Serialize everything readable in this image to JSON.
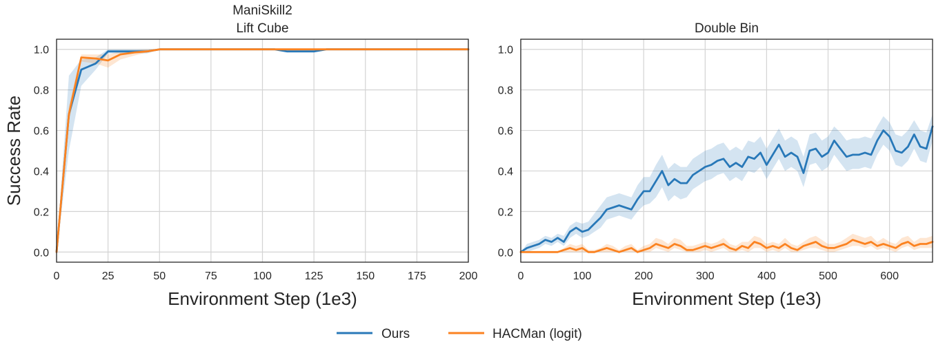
{
  "colors": {
    "ours": "#2878b8",
    "hacman": "#fb8220",
    "grid": "#d3d3d3",
    "axis": "#262626"
  },
  "legend": {
    "entries": [
      "Ours",
      "HACMan (logit)"
    ]
  },
  "chart_data": [
    {
      "type": "line",
      "title": [
        "ManiSkill2",
        "Lift Cube"
      ],
      "xlabel": "Environment Step (1e3)",
      "ylabel": "Success Rate",
      "xlim": [
        0,
        200
      ],
      "ylim": [
        -0.05,
        1.05
      ],
      "xticks": [
        0,
        25,
        50,
        75,
        100,
        125,
        150,
        175,
        200
      ],
      "xtick_labels": [
        "0",
        "25",
        "50",
        "75",
        "100",
        "125",
        "150",
        "175",
        "200"
      ],
      "yticks": [
        0.0,
        0.2,
        0.4,
        0.6,
        0.8,
        1.0
      ],
      "ytick_labels": [
        "0.0",
        "0.2",
        "0.4",
        "0.6",
        "0.8",
        "1.0"
      ],
      "grid": true,
      "series": [
        {
          "name": "Ours",
          "x": [
            0,
            6,
            12,
            19,
            25,
            31,
            38,
            44,
            50,
            56,
            62,
            69,
            75,
            81,
            87,
            94,
            100,
            106,
            112,
            119,
            125,
            131,
            137,
            144,
            150,
            156,
            162,
            169,
            175,
            181,
            187,
            194,
            200
          ],
          "y": [
            0.0,
            0.68,
            0.9,
            0.93,
            0.99,
            0.99,
            0.99,
            0.99,
            1.0,
            1.0,
            1.0,
            1.0,
            1.0,
            1.0,
            1.0,
            1.0,
            1.0,
            1.0,
            0.99,
            0.99,
            0.99,
            1.0,
            1.0,
            1.0,
            1.0,
            1.0,
            1.0,
            1.0,
            1.0,
            1.0,
            1.0,
            1.0,
            1.0
          ],
          "band_low": [
            0.0,
            0.5,
            0.82,
            0.9,
            0.98,
            0.98,
            0.98,
            0.98,
            1.0,
            1.0,
            1.0,
            1.0,
            1.0,
            1.0,
            1.0,
            1.0,
            1.0,
            1.0,
            0.985,
            0.985,
            0.985,
            1.0,
            1.0,
            1.0,
            1.0,
            1.0,
            1.0,
            1.0,
            1.0,
            1.0,
            1.0,
            1.0,
            1.0
          ],
          "band_high": [
            0.0,
            0.87,
            0.95,
            0.96,
            1.0,
            1.0,
            1.0,
            1.0,
            1.0,
            1.0,
            1.0,
            1.0,
            1.0,
            1.0,
            1.0,
            1.0,
            1.0,
            1.0,
            1.0,
            1.0,
            1.0,
            1.0,
            1.0,
            1.0,
            1.0,
            1.0,
            1.0,
            1.0,
            1.0,
            1.0,
            1.0,
            1.0,
            1.0
          ]
        },
        {
          "name": "HACMan (logit)",
          "x": [
            0,
            6,
            12,
            19,
            25,
            31,
            38,
            44,
            50,
            56,
            62,
            69,
            75,
            81,
            87,
            94,
            100,
            106,
            112,
            119,
            125,
            131,
            137,
            144,
            150,
            156,
            162,
            169,
            175,
            181,
            187,
            194,
            200
          ],
          "y": [
            0.0,
            0.68,
            0.96,
            0.955,
            0.945,
            0.975,
            0.985,
            0.99,
            1.0,
            1.0,
            1.0,
            1.0,
            1.0,
            1.0,
            1.0,
            1.0,
            1.0,
            1.0,
            1.0,
            1.0,
            1.0,
            1.0,
            1.0,
            1.0,
            1.0,
            1.0,
            1.0,
            1.0,
            1.0,
            1.0,
            1.0,
            1.0,
            1.0
          ],
          "band_low": [
            0.0,
            0.64,
            0.94,
            0.93,
            0.91,
            0.95,
            0.97,
            0.985,
            1.0,
            1.0,
            1.0,
            1.0,
            1.0,
            1.0,
            1.0,
            1.0,
            1.0,
            1.0,
            1.0,
            1.0,
            1.0,
            1.0,
            1.0,
            1.0,
            1.0,
            1.0,
            1.0,
            1.0,
            1.0,
            1.0,
            1.0,
            1.0,
            1.0
          ],
          "band_high": [
            0.0,
            0.72,
            0.975,
            0.975,
            0.975,
            0.99,
            0.995,
            1.0,
            1.0,
            1.0,
            1.0,
            1.0,
            1.0,
            1.0,
            1.0,
            1.0,
            1.0,
            1.0,
            1.0,
            1.0,
            1.0,
            1.0,
            1.0,
            1.0,
            1.0,
            1.0,
            1.0,
            1.0,
            1.0,
            1.0,
            1.0,
            1.0,
            1.0
          ]
        }
      ]
    },
    {
      "type": "line",
      "title": [
        "Double Bin"
      ],
      "xlabel": "Environment Step (1e3)",
      "ylabel": "",
      "xlim": [
        0,
        670
      ],
      "ylim": [
        -0.05,
        1.05
      ],
      "xticks": [
        0,
        100,
        200,
        300,
        400,
        500,
        600
      ],
      "xtick_labels": [
        "0",
        "100",
        "200",
        "300",
        "400",
        "500",
        "600"
      ],
      "yticks": [
        0.0,
        0.2,
        0.4,
        0.6,
        0.8,
        1.0
      ],
      "ytick_labels": [
        "0.0",
        "0.2",
        "0.4",
        "0.6",
        "0.8",
        "1.0"
      ],
      "grid": true,
      "series": [
        {
          "name": "Ours",
          "x": [
            0,
            10,
            20,
            30,
            40,
            50,
            60,
            70,
            80,
            90,
            100,
            110,
            120,
            130,
            140,
            150,
            160,
            170,
            180,
            190,
            200,
            210,
            220,
            230,
            240,
            250,
            260,
            270,
            280,
            290,
            300,
            310,
            320,
            330,
            340,
            350,
            360,
            370,
            380,
            390,
            400,
            410,
            420,
            430,
            440,
            450,
            460,
            470,
            480,
            490,
            500,
            510,
            520,
            530,
            540,
            550,
            560,
            570,
            580,
            590,
            600,
            610,
            620,
            630,
            640,
            650,
            660,
            670
          ],
          "y": [
            0.0,
            0.02,
            0.03,
            0.04,
            0.06,
            0.05,
            0.07,
            0.05,
            0.1,
            0.12,
            0.1,
            0.11,
            0.14,
            0.17,
            0.21,
            0.22,
            0.23,
            0.22,
            0.21,
            0.26,
            0.3,
            0.3,
            0.35,
            0.4,
            0.33,
            0.36,
            0.34,
            0.34,
            0.38,
            0.4,
            0.42,
            0.43,
            0.45,
            0.46,
            0.42,
            0.44,
            0.42,
            0.47,
            0.46,
            0.49,
            0.43,
            0.48,
            0.53,
            0.47,
            0.49,
            0.47,
            0.39,
            0.5,
            0.51,
            0.47,
            0.49,
            0.55,
            0.51,
            0.47,
            0.48,
            0.48,
            0.49,
            0.48,
            0.55,
            0.6,
            0.57,
            0.5,
            0.49,
            0.52,
            0.58,
            0.52,
            0.51,
            0.62
          ],
          "band_low": [
            0.0,
            0.0,
            0.01,
            0.02,
            0.04,
            0.03,
            0.05,
            0.03,
            0.07,
            0.09,
            0.07,
            0.08,
            0.1,
            0.12,
            0.16,
            0.17,
            0.18,
            0.17,
            0.16,
            0.2,
            0.23,
            0.24,
            0.27,
            0.32,
            0.25,
            0.28,
            0.26,
            0.27,
            0.31,
            0.33,
            0.35,
            0.36,
            0.38,
            0.39,
            0.35,
            0.37,
            0.35,
            0.4,
            0.39,
            0.42,
            0.36,
            0.41,
            0.46,
            0.4,
            0.42,
            0.4,
            0.32,
            0.43,
            0.44,
            0.4,
            0.42,
            0.48,
            0.44,
            0.4,
            0.41,
            0.41,
            0.42,
            0.41,
            0.48,
            0.53,
            0.5,
            0.43,
            0.42,
            0.45,
            0.51,
            0.45,
            0.44,
            0.55
          ],
          "band_high": [
            0.0,
            0.04,
            0.05,
            0.06,
            0.08,
            0.07,
            0.09,
            0.08,
            0.13,
            0.15,
            0.14,
            0.15,
            0.19,
            0.23,
            0.27,
            0.28,
            0.29,
            0.28,
            0.27,
            0.33,
            0.37,
            0.37,
            0.43,
            0.48,
            0.41,
            0.44,
            0.42,
            0.42,
            0.46,
            0.48,
            0.5,
            0.51,
            0.53,
            0.54,
            0.5,
            0.52,
            0.5,
            0.55,
            0.54,
            0.57,
            0.51,
            0.56,
            0.61,
            0.55,
            0.57,
            0.55,
            0.47,
            0.58,
            0.59,
            0.55,
            0.57,
            0.62,
            0.59,
            0.55,
            0.56,
            0.56,
            0.57,
            0.56,
            0.62,
            0.67,
            0.64,
            0.58,
            0.57,
            0.6,
            0.65,
            0.6,
            0.59,
            0.68
          ]
        },
        {
          "name": "HACMan (logit)",
          "x": [
            0,
            10,
            20,
            30,
            40,
            50,
            60,
            70,
            80,
            90,
            100,
            110,
            120,
            130,
            140,
            150,
            160,
            170,
            180,
            190,
            200,
            210,
            220,
            230,
            240,
            250,
            260,
            270,
            280,
            290,
            300,
            310,
            320,
            330,
            340,
            350,
            360,
            370,
            380,
            390,
            400,
            410,
            420,
            430,
            440,
            450,
            460,
            470,
            480,
            490,
            500,
            510,
            520,
            530,
            540,
            550,
            560,
            570,
            580,
            590,
            600,
            610,
            620,
            630,
            640,
            650,
            660,
            670
          ],
          "y": [
            0.0,
            0.0,
            0.0,
            0.0,
            0.0,
            0.0,
            0.0,
            0.01,
            0.02,
            0.01,
            0.02,
            0.0,
            0.0,
            0.01,
            0.02,
            0.01,
            0.0,
            0.01,
            0.02,
            0.0,
            0.01,
            0.02,
            0.04,
            0.03,
            0.02,
            0.04,
            0.03,
            0.01,
            0.01,
            0.02,
            0.03,
            0.02,
            0.03,
            0.04,
            0.02,
            0.01,
            0.03,
            0.02,
            0.05,
            0.04,
            0.02,
            0.03,
            0.02,
            0.04,
            0.02,
            0.01,
            0.03,
            0.04,
            0.05,
            0.03,
            0.02,
            0.02,
            0.03,
            0.04,
            0.06,
            0.05,
            0.04,
            0.05,
            0.03,
            0.04,
            0.03,
            0.02,
            0.04,
            0.05,
            0.03,
            0.04,
            0.04,
            0.05
          ],
          "band_low": [
            0.0,
            0.0,
            0.0,
            0.0,
            0.0,
            0.0,
            0.0,
            0.0,
            0.0,
            0.0,
            0.0,
            0.0,
            0.0,
            0.0,
            0.0,
            0.0,
            0.0,
            0.0,
            0.0,
            0.0,
            0.0,
            0.0,
            0.02,
            0.01,
            0.0,
            0.02,
            0.01,
            0.0,
            0.0,
            0.0,
            0.01,
            0.0,
            0.01,
            0.02,
            0.0,
            0.0,
            0.01,
            0.0,
            0.02,
            0.02,
            0.0,
            0.01,
            0.0,
            0.02,
            0.0,
            0.0,
            0.01,
            0.02,
            0.02,
            0.01,
            0.0,
            0.0,
            0.01,
            0.02,
            0.03,
            0.03,
            0.02,
            0.03,
            0.01,
            0.02,
            0.01,
            0.0,
            0.02,
            0.03,
            0.01,
            0.02,
            0.02,
            0.02
          ],
          "band_high": [
            0.0,
            0.0,
            0.0,
            0.0,
            0.0,
            0.0,
            0.0,
            0.02,
            0.04,
            0.03,
            0.04,
            0.01,
            0.01,
            0.02,
            0.04,
            0.03,
            0.01,
            0.03,
            0.04,
            0.01,
            0.03,
            0.04,
            0.07,
            0.06,
            0.04,
            0.07,
            0.06,
            0.03,
            0.03,
            0.04,
            0.05,
            0.04,
            0.05,
            0.07,
            0.04,
            0.03,
            0.05,
            0.05,
            0.08,
            0.07,
            0.04,
            0.05,
            0.04,
            0.07,
            0.04,
            0.03,
            0.05,
            0.07,
            0.08,
            0.06,
            0.04,
            0.04,
            0.05,
            0.07,
            0.09,
            0.08,
            0.07,
            0.08,
            0.05,
            0.07,
            0.05,
            0.04,
            0.07,
            0.08,
            0.05,
            0.07,
            0.07,
            0.08
          ]
        }
      ]
    }
  ]
}
